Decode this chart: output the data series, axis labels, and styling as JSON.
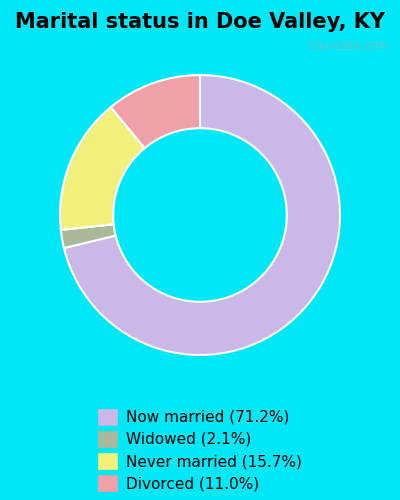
{
  "title": "Marital status in Doe Valley, KY",
  "slices": [
    71.2,
    2.1,
    15.7,
    11.0
  ],
  "labels": [
    "Now married (71.2%)",
    "Widowed (2.1%)",
    "Never married (15.7%)",
    "Divorced (11.0%)"
  ],
  "colors": [
    "#c9b8e8",
    "#a8b89a",
    "#f0f07a",
    "#f0a0a8"
  ],
  "background_top": "#c8e8d8",
  "background_bottom": "#d8ecd0",
  "outer_bg": "#00e8f8",
  "chart_bg_color": "#d4ead8",
  "donut_hole": 0.65,
  "title_fontsize": 15,
  "legend_fontsize": 11,
  "watermark": "City-Data.com"
}
